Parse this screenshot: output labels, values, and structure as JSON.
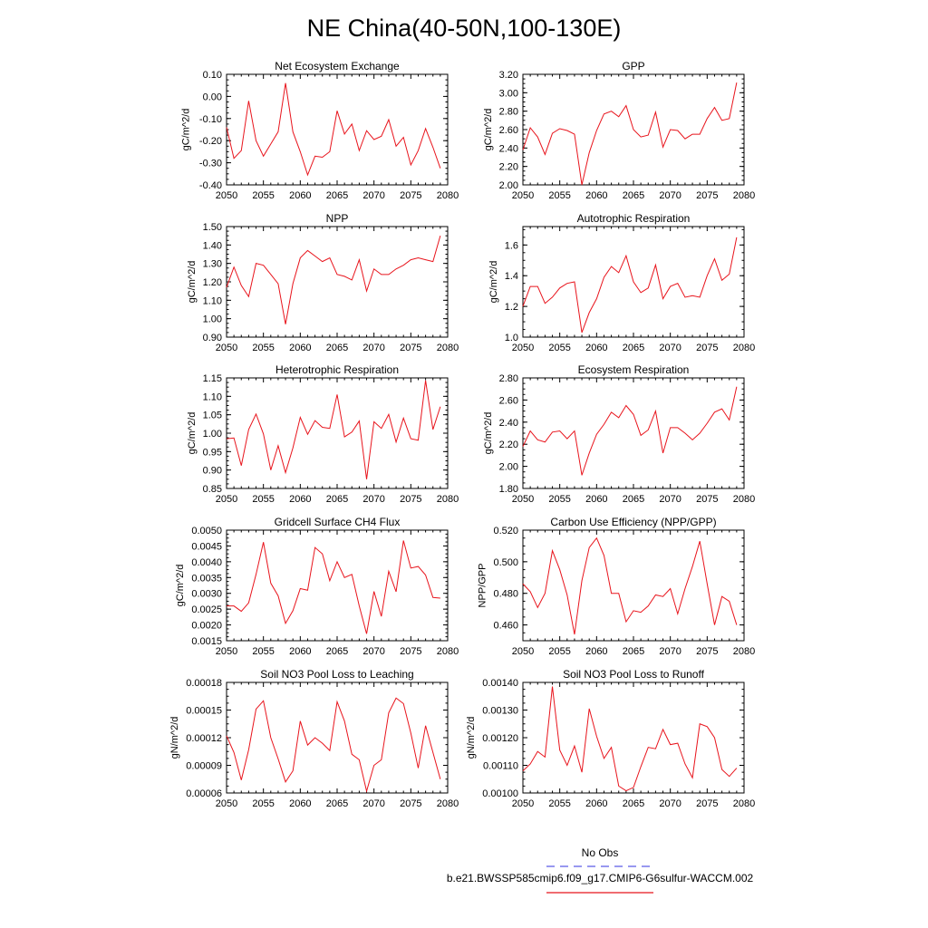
{
  "figure": {
    "title": "NE China(40-50N,100-130E)",
    "series_color": "#e8141c",
    "obs_color": "#5a5ae6"
  },
  "legend": {
    "obs_label": "No Obs",
    "model_label": "b.e21.BWSSP585cmip6.f09_g17.CMIP6-G6sulfur-WACCM.002"
  },
  "chart_data": [
    {
      "type": "line",
      "title": "Net Ecosystem Exchange",
      "ylabel": "gC/m^2/d",
      "xlim": [
        2050,
        2080
      ],
      "ylim": [
        -0.4,
        0.1
      ],
      "xticks": [
        "2050",
        "2055",
        "2060",
        "2065",
        "2070",
        "2075",
        "2080"
      ],
      "yticks": [
        "-0.40",
        "-0.30",
        "-0.20",
        "-0.10",
        "0.00",
        "0.10"
      ],
      "ytick_values": [
        -0.4,
        -0.3,
        -0.2,
        -0.1,
        0.0,
        0.1
      ],
      "x": [
        2050,
        2051,
        2052,
        2053,
        2054,
        2055,
        2056,
        2057,
        2058,
        2059,
        2060,
        2061,
        2062,
        2063,
        2064,
        2065,
        2066,
        2067,
        2068,
        2069,
        2070,
        2071,
        2072,
        2073,
        2074,
        2075,
        2076,
        2077,
        2078,
        2079
      ],
      "series": [
        {
          "values": [
            -0.14,
            -0.28,
            -0.245,
            -0.02,
            -0.2,
            -0.27,
            -0.215,
            -0.16,
            0.06,
            -0.16,
            -0.25,
            -0.355,
            -0.27,
            -0.275,
            -0.25,
            -0.065,
            -0.17,
            -0.125,
            -0.245,
            -0.155,
            -0.195,
            -0.18,
            -0.105,
            -0.225,
            -0.185,
            -0.31,
            -0.245,
            -0.145,
            -0.23,
            -0.325
          ]
        }
      ]
    },
    {
      "type": "line",
      "title": "GPP",
      "ylabel": "gC/m^2/d",
      "xlim": [
        2050,
        2080
      ],
      "ylim": [
        2.0,
        3.2
      ],
      "xticks": [
        "2050",
        "2055",
        "2060",
        "2065",
        "2070",
        "2075",
        "2080"
      ],
      "yticks": [
        "2.00",
        "2.20",
        "2.40",
        "2.60",
        "2.80",
        "3.00",
        "3.20"
      ],
      "ytick_values": [
        2.0,
        2.2,
        2.4,
        2.6,
        2.8,
        3.0,
        3.2
      ],
      "x": [
        2050,
        2051,
        2052,
        2053,
        2054,
        2055,
        2056,
        2057,
        2058,
        2059,
        2060,
        2061,
        2062,
        2063,
        2064,
        2065,
        2066,
        2067,
        2068,
        2069,
        2070,
        2071,
        2072,
        2073,
        2074,
        2075,
        2076,
        2077,
        2078,
        2079
      ],
      "series": [
        {
          "values": [
            2.38,
            2.62,
            2.52,
            2.33,
            2.56,
            2.61,
            2.59,
            2.55,
            2.0,
            2.35,
            2.59,
            2.77,
            2.8,
            2.74,
            2.86,
            2.6,
            2.52,
            2.54,
            2.79,
            2.41,
            2.6,
            2.59,
            2.5,
            2.55,
            2.55,
            2.72,
            2.84,
            2.7,
            2.72,
            3.11
          ]
        }
      ]
    },
    {
      "type": "line",
      "title": "NPP",
      "ylabel": "gC/m^2/d",
      "xlim": [
        2050,
        2080
      ],
      "ylim": [
        0.9,
        1.5
      ],
      "xticks": [
        "2050",
        "2055",
        "2060",
        "2065",
        "2070",
        "2075",
        "2080"
      ],
      "yticks": [
        "0.90",
        "1.00",
        "1.10",
        "1.20",
        "1.30",
        "1.40",
        "1.50"
      ],
      "ytick_values": [
        0.9,
        1.0,
        1.1,
        1.2,
        1.3,
        1.4,
        1.5
      ],
      "x": [
        2050,
        2051,
        2052,
        2053,
        2054,
        2055,
        2056,
        2057,
        2058,
        2059,
        2060,
        2061,
        2062,
        2063,
        2064,
        2065,
        2066,
        2067,
        2068,
        2069,
        2070,
        2071,
        2072,
        2073,
        2074,
        2075,
        2076,
        2077,
        2078,
        2079
      ],
      "series": [
        {
          "values": [
            1.17,
            1.28,
            1.18,
            1.12,
            1.3,
            1.29,
            1.24,
            1.19,
            0.97,
            1.19,
            1.33,
            1.37,
            1.34,
            1.31,
            1.33,
            1.24,
            1.23,
            1.21,
            1.32,
            1.15,
            1.27,
            1.24,
            1.24,
            1.27,
            1.29,
            1.32,
            1.33,
            1.32,
            1.31,
            1.45
          ]
        }
      ]
    },
    {
      "type": "line",
      "title": "Autotrophic Respiration",
      "ylabel": "gC/m^2/d",
      "xlim": [
        2050,
        2080
      ],
      "ylim": [
        1.0,
        1.72
      ],
      "xticks": [
        "2050",
        "2055",
        "2060",
        "2065",
        "2070",
        "2075",
        "2080"
      ],
      "yticks": [
        "1.0",
        "1.2",
        "1.4",
        "1.6"
      ],
      "ytick_values": [
        1.0,
        1.2,
        1.4,
        1.6
      ],
      "x": [
        2050,
        2051,
        2052,
        2053,
        2054,
        2055,
        2056,
        2057,
        2058,
        2059,
        2060,
        2061,
        2062,
        2063,
        2064,
        2065,
        2066,
        2067,
        2068,
        2069,
        2070,
        2071,
        2072,
        2073,
        2074,
        2075,
        2076,
        2077,
        2078,
        2079
      ],
      "series": [
        {
          "values": [
            1.2,
            1.33,
            1.33,
            1.22,
            1.26,
            1.32,
            1.35,
            1.36,
            1.03,
            1.16,
            1.25,
            1.39,
            1.46,
            1.42,
            1.53,
            1.36,
            1.29,
            1.32,
            1.47,
            1.25,
            1.33,
            1.35,
            1.26,
            1.27,
            1.26,
            1.4,
            1.51,
            1.37,
            1.41,
            1.65
          ]
        }
      ]
    },
    {
      "type": "line",
      "title": "Heterotrophic Respiration",
      "ylabel": "gC/m^2/d",
      "xlim": [
        2050,
        2080
      ],
      "ylim": [
        0.85,
        1.15
      ],
      "xticks": [
        "2050",
        "2055",
        "2060",
        "2065",
        "2070",
        "2075",
        "2080"
      ],
      "yticks": [
        "0.85",
        "0.90",
        "0.95",
        "1.00",
        "1.05",
        "1.10",
        "1.15"
      ],
      "ytick_values": [
        0.85,
        0.9,
        0.95,
        1.0,
        1.05,
        1.1,
        1.15
      ],
      "x": [
        2050,
        2051,
        2052,
        2053,
        2054,
        2055,
        2056,
        2057,
        2058,
        2059,
        2060,
        2061,
        2062,
        2063,
        2064,
        2065,
        2066,
        2067,
        2068,
        2069,
        2070,
        2071,
        2072,
        2073,
        2074,
        2075,
        2076,
        2077,
        2078,
        2079
      ],
      "series": [
        {
          "values": [
            0.985,
            0.987,
            0.912,
            1.01,
            1.052,
            0.998,
            0.9,
            0.966,
            0.893,
            0.96,
            1.043,
            0.997,
            1.034,
            1.016,
            1.013,
            1.105,
            0.99,
            1.003,
            1.033,
            0.875,
            1.031,
            1.013,
            1.051,
            0.976,
            1.041,
            0.985,
            0.981,
            1.143,
            1.01,
            1.072
          ]
        }
      ]
    },
    {
      "type": "line",
      "title": "Ecosystem Respiration",
      "ylabel": "gC/m^2/d",
      "xlim": [
        2050,
        2080
      ],
      "ylim": [
        1.8,
        2.8
      ],
      "xticks": [
        "2050",
        "2055",
        "2060",
        "2065",
        "2070",
        "2075",
        "2080"
      ],
      "yticks": [
        "1.80",
        "2.00",
        "2.20",
        "2.40",
        "2.60",
        "2.80"
      ],
      "ytick_values": [
        1.8,
        2.0,
        2.2,
        2.4,
        2.6,
        2.8
      ],
      "x": [
        2050,
        2051,
        2052,
        2053,
        2054,
        2055,
        2056,
        2057,
        2058,
        2059,
        2060,
        2061,
        2062,
        2063,
        2064,
        2065,
        2066,
        2067,
        2068,
        2069,
        2070,
        2071,
        2072,
        2073,
        2074,
        2075,
        2076,
        2077,
        2078,
        2079
      ],
      "series": [
        {
          "values": [
            2.18,
            2.32,
            2.24,
            2.22,
            2.31,
            2.32,
            2.25,
            2.32,
            1.92,
            2.12,
            2.29,
            2.38,
            2.49,
            2.44,
            2.55,
            2.47,
            2.28,
            2.33,
            2.5,
            2.12,
            2.35,
            2.35,
            2.3,
            2.24,
            2.3,
            2.39,
            2.49,
            2.52,
            2.42,
            2.72
          ]
        }
      ]
    },
    {
      "type": "line",
      "title": "Gridcell Surface CH4 Flux",
      "ylabel": "gC/m^2/d",
      "xlim": [
        2050,
        2080
      ],
      "ylim": [
        0.0015,
        0.005
      ],
      "xticks": [
        "2050",
        "2055",
        "2060",
        "2065",
        "2070",
        "2075",
        "2080"
      ],
      "yticks": [
        "0.0015",
        "0.0020",
        "0.0025",
        "0.0030",
        "0.0035",
        "0.0040",
        "0.0045",
        "0.0050"
      ],
      "ytick_values": [
        0.0015,
        0.002,
        0.0025,
        0.003,
        0.0035,
        0.004,
        0.0045,
        0.005
      ],
      "x": [
        2050,
        2051,
        2052,
        2053,
        2054,
        2055,
        2056,
        2057,
        2058,
        2059,
        2060,
        2061,
        2062,
        2063,
        2064,
        2065,
        2066,
        2067,
        2068,
        2069,
        2070,
        2071,
        2072,
        2073,
        2074,
        2075,
        2076,
        2077,
        2078,
        2079
      ],
      "series": [
        {
          "values": [
            0.0026,
            0.0026,
            0.00243,
            0.0027,
            0.0036,
            0.00462,
            0.00332,
            0.00292,
            0.00205,
            0.00245,
            0.00315,
            0.0031,
            0.00445,
            0.00425,
            0.0034,
            0.004,
            0.0035,
            0.0036,
            0.0026,
            0.00172,
            0.00306,
            0.00227,
            0.0037,
            0.00305,
            0.00467,
            0.0038,
            0.00385,
            0.00358,
            0.00287,
            0.00285
          ]
        }
      ]
    },
    {
      "type": "line",
      "title": "Carbon Use Efficiency (NPP/GPP)",
      "ylabel": "NPP/GPP",
      "xlim": [
        2050,
        2080
      ],
      "ylim": [
        0.45,
        0.52
      ],
      "xticks": [
        "2050",
        "2055",
        "2060",
        "2065",
        "2070",
        "2075",
        "2080"
      ],
      "yticks": [
        "0.460",
        "0.480",
        "0.500",
        "0.520"
      ],
      "ytick_values": [
        0.46,
        0.48,
        0.5,
        0.52
      ],
      "x": [
        2050,
        2051,
        2052,
        2053,
        2054,
        2055,
        2056,
        2057,
        2058,
        2059,
        2060,
        2061,
        2062,
        2063,
        2064,
        2065,
        2066,
        2067,
        2068,
        2069,
        2070,
        2071,
        2072,
        2073,
        2074,
        2075,
        2076,
        2077,
        2078,
        2079
      ],
      "series": [
        {
          "values": [
            0.486,
            0.481,
            0.471,
            0.48,
            0.507,
            0.495,
            0.479,
            0.454,
            0.488,
            0.509,
            0.515,
            0.504,
            0.48,
            0.48,
            0.462,
            0.469,
            0.468,
            0.472,
            0.479,
            0.478,
            0.483,
            0.467,
            0.483,
            0.497,
            0.513,
            0.486,
            0.46,
            0.478,
            0.475,
            0.46
          ]
        }
      ]
    },
    {
      "type": "line",
      "title": "Soil NO3 Pool Loss to Leaching",
      "ylabel": "gN/m^2/d",
      "xlim": [
        2050,
        2080
      ],
      "ylim": [
        6e-05,
        0.00018
      ],
      "xticks": [
        "2050",
        "2055",
        "2060",
        "2065",
        "2070",
        "2075",
        "2080"
      ],
      "yticks": [
        "0.00006",
        "0.00009",
        "0.00012",
        "0.00015",
        "0.00018"
      ],
      "ytick_values": [
        6e-05,
        9e-05,
        0.00012,
        0.00015,
        0.00018
      ],
      "x": [
        2050,
        2051,
        2052,
        2053,
        2054,
        2055,
        2056,
        2057,
        2058,
        2059,
        2060,
        2061,
        2062,
        2063,
        2064,
        2065,
        2066,
        2067,
        2068,
        2069,
        2070,
        2071,
        2072,
        2073,
        2074,
        2075,
        2076,
        2077,
        2078,
        2079
      ],
      "series": [
        {
          "values": [
            0.000122,
            0.000104,
            7.4e-05,
            0.000107,
            0.000151,
            0.00016,
            0.00012,
            9.7e-05,
            7.2e-05,
            8.4e-05,
            0.000138,
            0.000112,
            0.00012,
            0.000114,
            0.000106,
            0.000159,
            0.000138,
            0.000102,
            9.6e-05,
            6.2e-05,
            9e-05,
            9.6e-05,
            0.000147,
            0.000163,
            0.000157,
            0.000125,
            8.7e-05,
            0.000133,
            0.000104,
            7.5e-05
          ]
        }
      ]
    },
    {
      "type": "line",
      "title": "Soil NO3 Pool Loss to Runoff",
      "ylabel": "gN/m^2/d",
      "xlim": [
        2050,
        2080
      ],
      "ylim": [
        0.001,
        0.0014
      ],
      "xticks": [
        "2050",
        "2055",
        "2060",
        "2065",
        "2070",
        "2075",
        "2080"
      ],
      "yticks": [
        "0.00100",
        "0.00110",
        "0.00120",
        "0.00130",
        "0.00140"
      ],
      "ytick_values": [
        0.001,
        0.0011,
        0.0012,
        0.0013,
        0.0014
      ],
      "x": [
        2050,
        2051,
        2052,
        2053,
        2054,
        2055,
        2056,
        2057,
        2058,
        2059,
        2060,
        2061,
        2062,
        2063,
        2064,
        2065,
        2066,
        2067,
        2068,
        2069,
        2070,
        2071,
        2072,
        2073,
        2074,
        2075,
        2076,
        2077,
        2078,
        2079
      ],
      "series": [
        {
          "values": [
            0.00108,
            0.001105,
            0.00115,
            0.00113,
            0.001385,
            0.001155,
            0.0011,
            0.00117,
            0.001075,
            0.001305,
            0.001205,
            0.001125,
            0.001165,
            0.001025,
            0.001008,
            0.00102,
            0.001095,
            0.001165,
            0.00116,
            0.00123,
            0.001175,
            0.00118,
            0.001105,
            0.001055,
            0.00125,
            0.00124,
            0.0012,
            0.001085,
            0.00106,
            0.00109
          ]
        }
      ]
    }
  ]
}
